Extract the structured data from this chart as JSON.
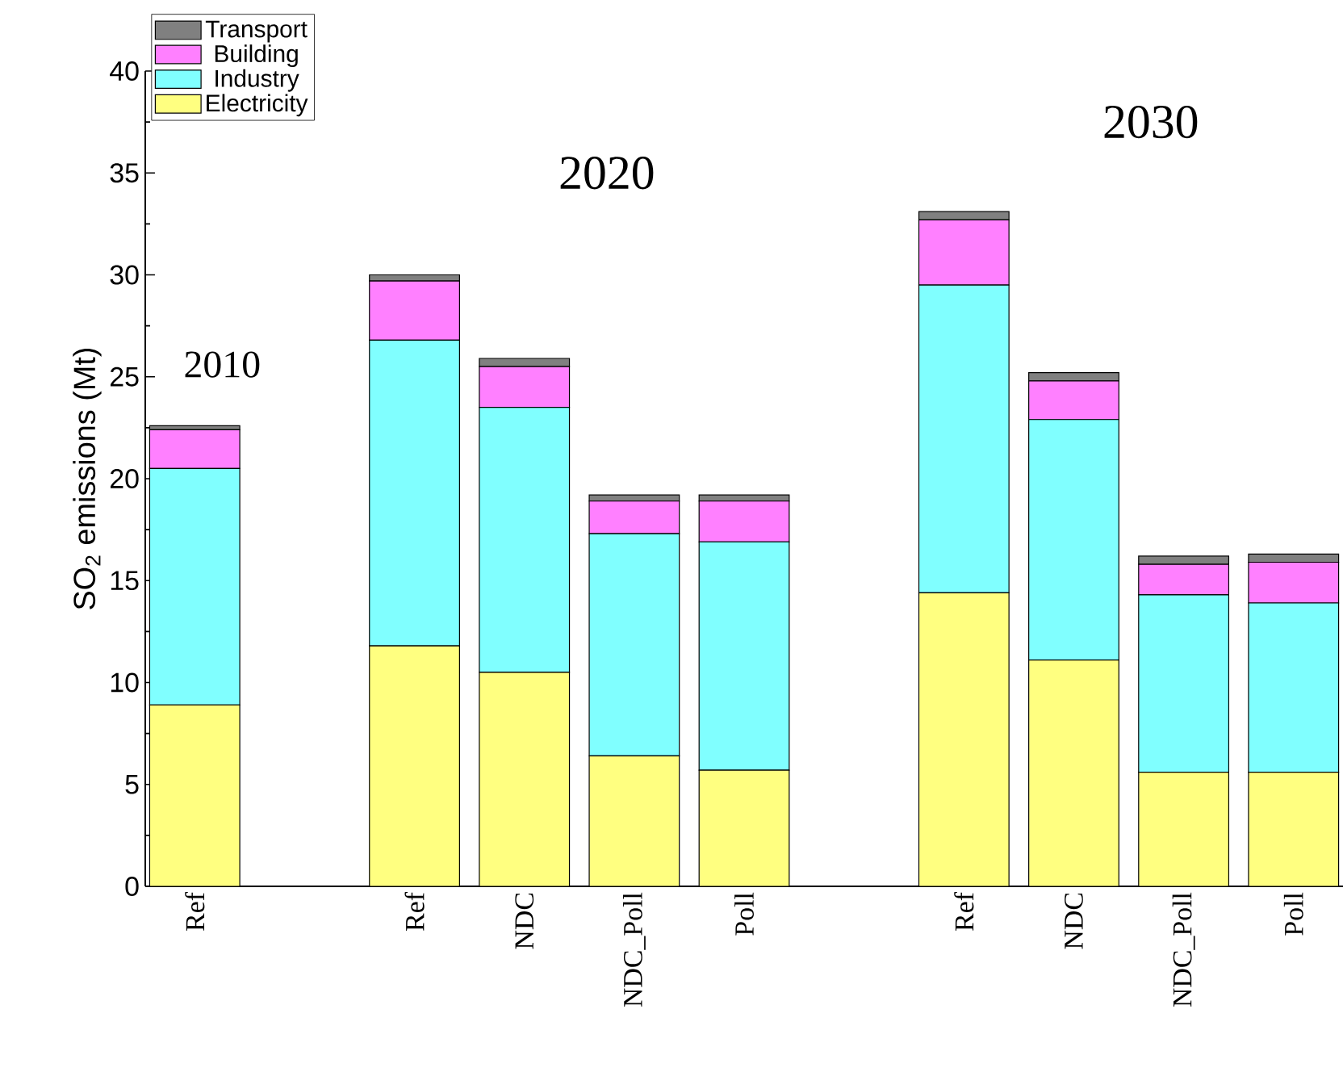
{
  "chart_data": {
    "type": "bar",
    "stacked": true,
    "ylabel": "SO$_{2}$ emissions (Mt)",
    "categories": [
      "Ref",
      null,
      "Ref",
      "NDC",
      "NDC_Poll",
      "Poll",
      null,
      "Ref",
      "NDC",
      "NDC_Poll",
      "Poll"
    ],
    "series": [
      {
        "name": "Electricity",
        "color": "#ffff80",
        "values": [
          8.9,
          null,
          11.8,
          10.5,
          6.4,
          5.7,
          null,
          14.4,
          11.1,
          5.6,
          5.6
        ]
      },
      {
        "name": "Industry",
        "color": "#80ffff",
        "values": [
          11.6,
          null,
          15.0,
          13.0,
          10.9,
          11.2,
          null,
          15.1,
          11.8,
          8.7,
          8.3
        ]
      },
      {
        "name": "Building",
        "color": "#ff80ff",
        "values": [
          1.9,
          null,
          2.9,
          2.0,
          1.6,
          2.0,
          null,
          3.2,
          1.9,
          1.5,
          2.0
        ]
      },
      {
        "name": "Transport",
        "color": "#808080",
        "values": [
          0.2,
          null,
          0.3,
          0.4,
          0.3,
          0.3,
          null,
          0.4,
          0.4,
          0.4,
          0.4
        ]
      }
    ],
    "annotations": [
      "2010",
      "2020",
      "2030"
    ],
    "ylim": [
      0,
      40
    ],
    "yticks": [
      0,
      5,
      10,
      15,
      20,
      25,
      30,
      35,
      40
    ],
    "legend": "top left",
    "grid": false
  }
}
